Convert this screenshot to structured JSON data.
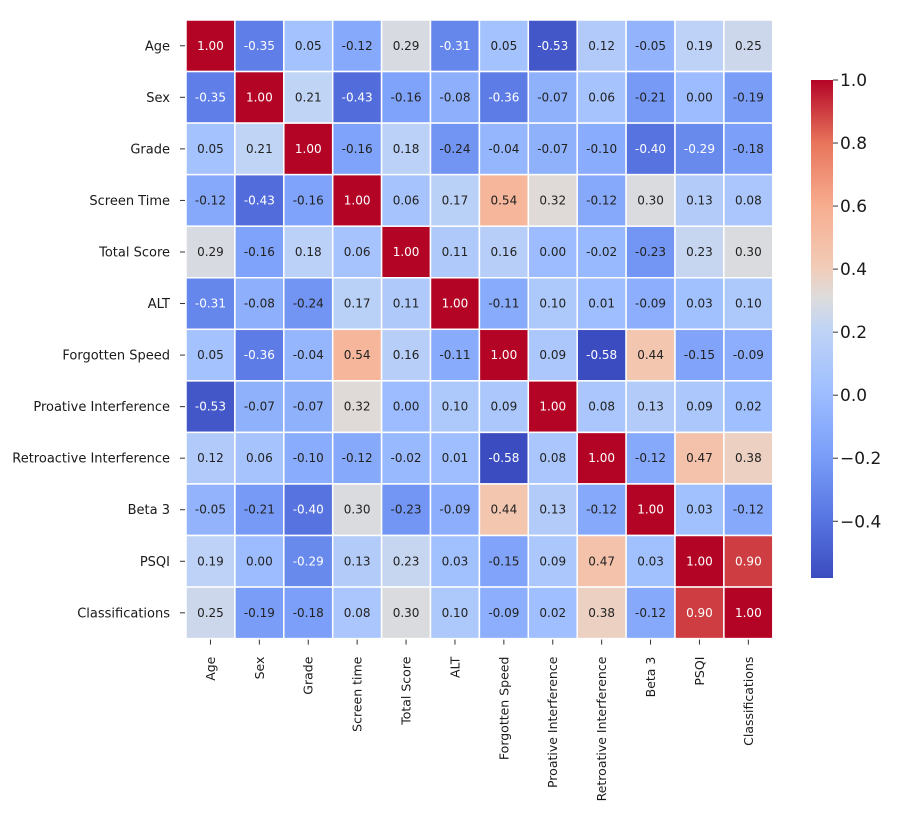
{
  "chart_data": {
    "type": "heatmap",
    "title": "",
    "xlabel": "",
    "ylabel": "",
    "row_labels": [
      "Age",
      "Sex",
      "Grade",
      "Screen Time",
      "Total Score",
      "ALT",
      "Forgotten Speed",
      "Proative Interference",
      "Retroactive Interference",
      "Beta 3",
      "PSQI",
      "Classifications"
    ],
    "col_labels": [
      "Age",
      "Sex",
      "Grade",
      "Screen time",
      "Total Score",
      "ALT",
      "Forgotten Speed",
      "Proative Interference",
      "Retroative Interference",
      "Beta 3",
      "PSQI",
      "Classifications"
    ],
    "values": [
      [
        1.0,
        -0.35,
        0.05,
        -0.12,
        0.29,
        -0.31,
        0.05,
        -0.53,
        0.12,
        -0.05,
        0.19,
        0.25
      ],
      [
        -0.35,
        1.0,
        0.21,
        -0.43,
        -0.16,
        -0.08,
        -0.36,
        -0.07,
        0.06,
        -0.21,
        0.0,
        -0.19
      ],
      [
        0.05,
        0.21,
        1.0,
        -0.16,
        0.18,
        -0.24,
        -0.04,
        -0.07,
        -0.1,
        -0.4,
        -0.29,
        -0.18
      ],
      [
        -0.12,
        -0.43,
        -0.16,
        1.0,
        0.06,
        0.17,
        0.54,
        0.32,
        -0.12,
        0.3,
        0.13,
        0.08
      ],
      [
        0.29,
        -0.16,
        0.18,
        0.06,
        1.0,
        0.11,
        0.16,
        0.0,
        -0.02,
        -0.23,
        0.23,
        0.3
      ],
      [
        -0.31,
        -0.08,
        -0.24,
        0.17,
        0.11,
        1.0,
        -0.11,
        0.1,
        0.01,
        -0.09,
        0.03,
        0.1
      ],
      [
        0.05,
        -0.36,
        -0.04,
        0.54,
        0.16,
        -0.11,
        1.0,
        0.09,
        -0.58,
        0.44,
        -0.15,
        -0.09
      ],
      [
        -0.53,
        -0.07,
        -0.07,
        0.32,
        0.0,
        0.1,
        0.09,
        1.0,
        0.08,
        0.13,
        0.09,
        0.02
      ],
      [
        0.12,
        0.06,
        -0.1,
        -0.12,
        -0.02,
        0.01,
        -0.58,
        0.08,
        1.0,
        -0.12,
        0.47,
        0.38
      ],
      [
        -0.05,
        -0.21,
        -0.4,
        0.3,
        -0.23,
        -0.09,
        0.44,
        0.13,
        -0.12,
        1.0,
        0.03,
        -0.12
      ],
      [
        0.19,
        0.0,
        -0.29,
        0.13,
        0.23,
        0.03,
        -0.15,
        0.09,
        0.47,
        0.03,
        1.0,
        0.9
      ],
      [
        0.25,
        -0.19,
        -0.18,
        0.08,
        0.3,
        0.1,
        -0.09,
        0.02,
        0.38,
        -0.12,
        0.9,
        1.0
      ]
    ],
    "value_format": "2 decimals",
    "colormap": "coolwarm",
    "vmin": -0.58,
    "vmax": 1.0,
    "colorbar": {
      "ticks": [
        1.0,
        0.8,
        0.6,
        0.4,
        0.2,
        0.0,
        -0.2,
        -0.4
      ],
      "tick_labels": [
        "1.0",
        "0.8",
        "0.6",
        "0.4",
        "0.2",
        "0.0",
        "−0.2",
        "−0.4"
      ],
      "position": "right"
    },
    "grid": false
  }
}
